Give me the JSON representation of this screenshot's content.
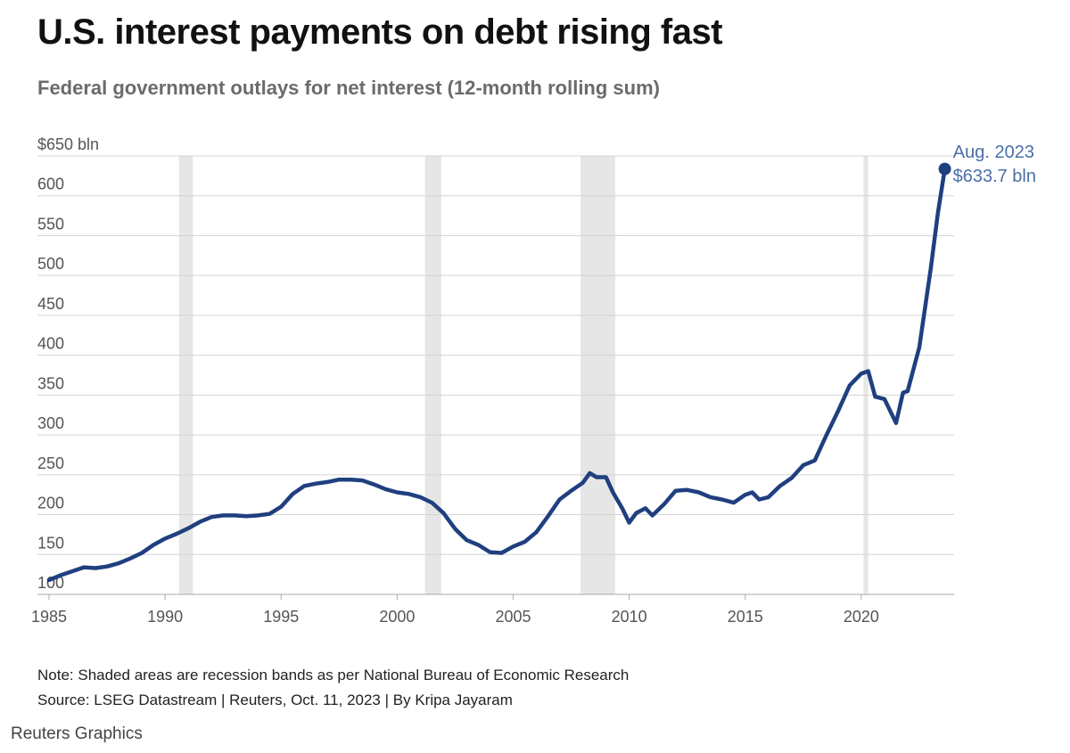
{
  "header": {
    "title": "U.S. interest payments on debt rising fast",
    "subtitle": "Federal government outlays for net interest (12-month rolling sum)"
  },
  "footer": {
    "note": "Note: Shaded areas are recession bands as per National Bureau of Economic Research",
    "source": "Source: LSEG Datastream | Reuters, Oct. 11, 2023 | By Kripa Jayaram",
    "brand": "Reuters Graphics"
  },
  "colors": {
    "line": "#1f3f7f",
    "annotation": "#4a6fa5",
    "recession_band": "#e6e6e6",
    "gridline": "#d4d4d4",
    "axis_text": "#555555"
  },
  "chart_data": {
    "type": "line",
    "ylim": [
      100,
      650
    ],
    "xlim": [
      1984.5,
      2024
    ],
    "y_tick_labels": [
      {
        "value": 650,
        "label": "$650 bln"
      },
      {
        "value": 600,
        "label": "600"
      },
      {
        "value": 550,
        "label": "550"
      },
      {
        "value": 500,
        "label": "500"
      },
      {
        "value": 450,
        "label": "450"
      },
      {
        "value": 400,
        "label": "400"
      },
      {
        "value": 350,
        "label": "350"
      },
      {
        "value": 300,
        "label": "300"
      },
      {
        "value": 250,
        "label": "250"
      },
      {
        "value": 200,
        "label": "200"
      },
      {
        "value": 150,
        "label": "150"
      },
      {
        "value": 100,
        "label": "100"
      }
    ],
    "x_ticks": [
      1985,
      1990,
      1995,
      2000,
      2005,
      2010,
      2015,
      2020
    ],
    "grid": "horizontal",
    "recession_bands": [
      {
        "start": 1990.6,
        "end": 1991.2
      },
      {
        "start": 2001.2,
        "end": 2001.9
      },
      {
        "start": 2007.9,
        "end": 2009.4
      },
      {
        "start": 2020.1,
        "end": 2020.3
      }
    ],
    "annotation": {
      "x": 2023.6,
      "y": 633.7,
      "line1": "Aug. 2023",
      "line2": "$633.7 bln"
    },
    "series": [
      {
        "points": [
          [
            1985.0,
            118
          ],
          [
            1985.5,
            124
          ],
          [
            1986.0,
            129
          ],
          [
            1986.5,
            134
          ],
          [
            1987.0,
            133
          ],
          [
            1987.5,
            135
          ],
          [
            1988.0,
            139
          ],
          [
            1988.5,
            145
          ],
          [
            1989.0,
            152
          ],
          [
            1989.5,
            162
          ],
          [
            1990.0,
            170
          ],
          [
            1990.5,
            176
          ],
          [
            1991.0,
            183
          ],
          [
            1991.5,
            191
          ],
          [
            1992.0,
            197
          ],
          [
            1992.5,
            199
          ],
          [
            1993.0,
            199
          ],
          [
            1993.5,
            198
          ],
          [
            1994.0,
            199
          ],
          [
            1994.5,
            201
          ],
          [
            1995.0,
            210
          ],
          [
            1995.5,
            226
          ],
          [
            1996.0,
            236
          ],
          [
            1996.5,
            239
          ],
          [
            1997.0,
            241
          ],
          [
            1997.5,
            244
          ],
          [
            1998.0,
            244
          ],
          [
            1998.5,
            243
          ],
          [
            1999.0,
            238
          ],
          [
            1999.5,
            232
          ],
          [
            2000.0,
            228
          ],
          [
            2000.5,
            226
          ],
          [
            2001.0,
            222
          ],
          [
            2001.5,
            215
          ],
          [
            2002.0,
            202
          ],
          [
            2002.5,
            182
          ],
          [
            2003.0,
            168
          ],
          [
            2003.5,
            162
          ],
          [
            2004.0,
            153
          ],
          [
            2004.5,
            152
          ],
          [
            2005.0,
            160
          ],
          [
            2005.5,
            166
          ],
          [
            2006.0,
            178
          ],
          [
            2006.5,
            198
          ],
          [
            2007.0,
            219
          ],
          [
            2007.5,
            230
          ],
          [
            2008.0,
            240
          ],
          [
            2008.3,
            252
          ],
          [
            2008.6,
            247
          ],
          [
            2009.0,
            247
          ],
          [
            2009.3,
            228
          ],
          [
            2009.7,
            208
          ],
          [
            2010.0,
            190
          ],
          [
            2010.3,
            202
          ],
          [
            2010.7,
            208
          ],
          [
            2011.0,
            199
          ],
          [
            2011.5,
            213
          ],
          [
            2012.0,
            230
          ],
          [
            2012.5,
            231
          ],
          [
            2013.0,
            228
          ],
          [
            2013.5,
            222
          ],
          [
            2014.0,
            219
          ],
          [
            2014.5,
            215
          ],
          [
            2015.0,
            225
          ],
          [
            2015.3,
            228
          ],
          [
            2015.6,
            219
          ],
          [
            2016.0,
            222
          ],
          [
            2016.5,
            236
          ],
          [
            2017.0,
            246
          ],
          [
            2017.5,
            262
          ],
          [
            2018.0,
            268
          ],
          [
            2018.5,
            300
          ],
          [
            2019.0,
            330
          ],
          [
            2019.5,
            362
          ],
          [
            2020.0,
            377
          ],
          [
            2020.3,
            380
          ],
          [
            2020.6,
            348
          ],
          [
            2021.0,
            345
          ],
          [
            2021.5,
            315
          ],
          [
            2021.8,
            353
          ],
          [
            2022.0,
            355
          ],
          [
            2022.5,
            410
          ],
          [
            2023.0,
            510
          ],
          [
            2023.3,
            578
          ],
          [
            2023.6,
            633.7
          ]
        ]
      }
    ]
  }
}
